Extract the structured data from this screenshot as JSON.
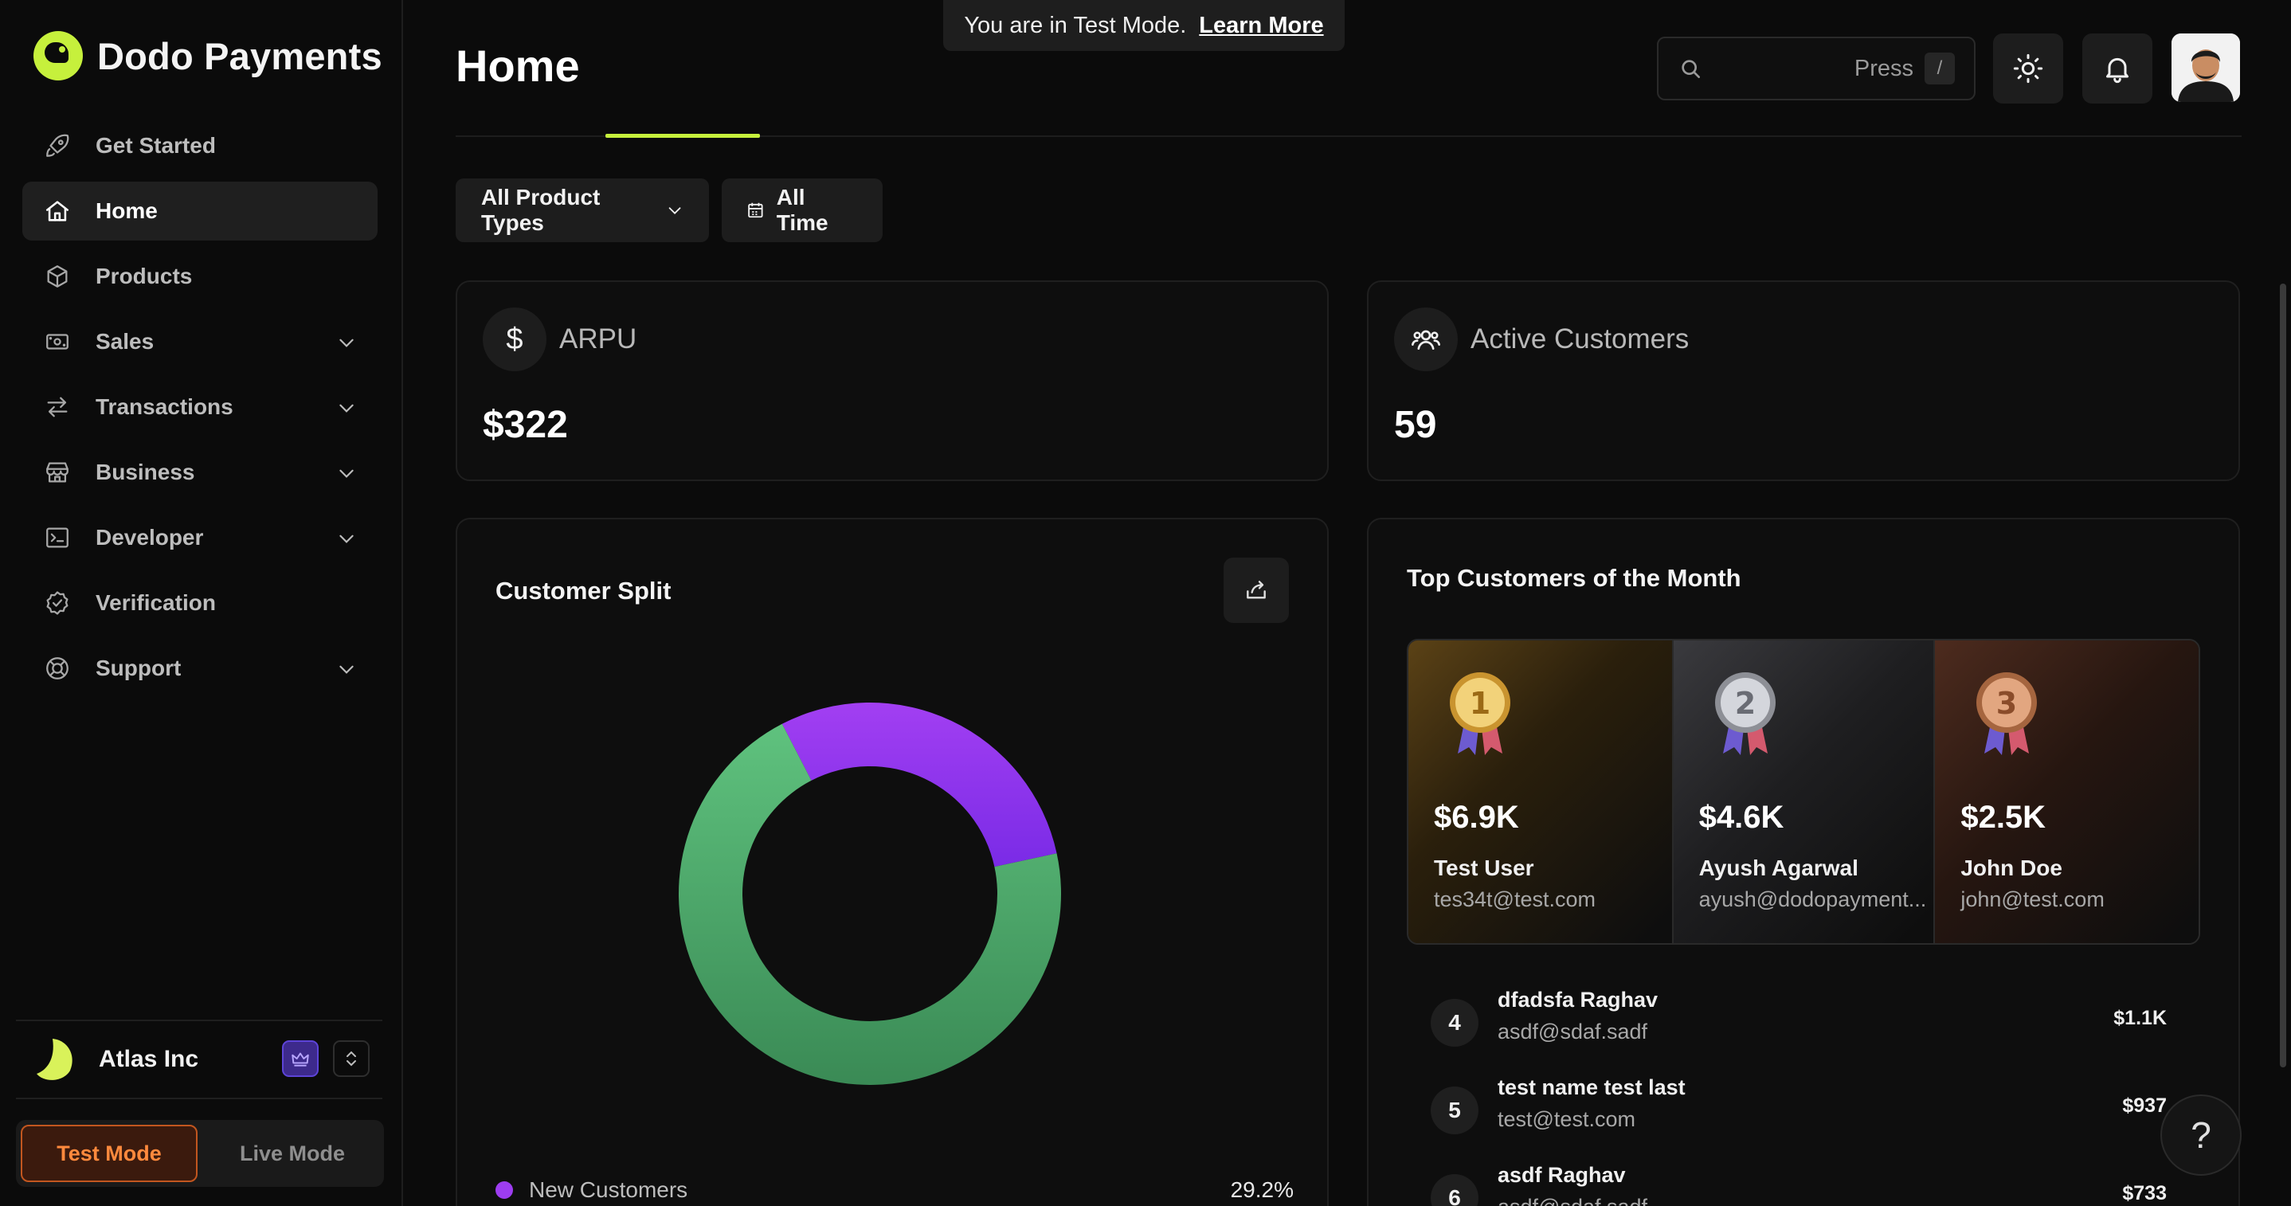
{
  "brand": {
    "name": "Dodo Payments"
  },
  "banner": {
    "text": "You are in Test Mode.",
    "link": "Learn More"
  },
  "header": {
    "title": "Home",
    "search_placeholder": "Press",
    "search_shortcut": "/"
  },
  "sidebar": {
    "items": [
      {
        "label": "Get Started",
        "icon": "rocket-icon"
      },
      {
        "label": "Home",
        "icon": "home-icon",
        "active": true
      },
      {
        "label": "Products",
        "icon": "box-icon"
      },
      {
        "label": "Sales",
        "icon": "cash-icon",
        "expandable": true
      },
      {
        "label": "Transactions",
        "icon": "arrows-icon",
        "expandable": true
      },
      {
        "label": "Business",
        "icon": "store-icon",
        "expandable": true
      },
      {
        "label": "Developer",
        "icon": "terminal-icon",
        "expandable": true
      },
      {
        "label": "Verification",
        "icon": "badge-check-icon"
      },
      {
        "label": "Support",
        "icon": "lifebuoy-icon",
        "expandable": true
      }
    ],
    "org": {
      "name": "Atlas Inc"
    },
    "mode": {
      "test": "Test Mode",
      "live": "Live Mode",
      "active": "test"
    }
  },
  "filters": {
    "product_types": "All Product Types",
    "time": "All Time"
  },
  "stats": [
    {
      "label": "ARPU",
      "value": "$322",
      "icon": "dollar-icon"
    },
    {
      "label": "Active Customers",
      "value": "59",
      "icon": "users-icon"
    }
  ],
  "customer_split": {
    "title": "Customer Split",
    "legend_label": "New Customers",
    "legend_value": "29.2%",
    "segments": [
      {
        "label": "New Customers",
        "percent": 29.2,
        "color": "#9d3df0"
      },
      {
        "label": "",
        "percent": 70.8,
        "color": "#4caf6e"
      }
    ]
  },
  "top_customers": {
    "title": "Top Customers of the Month",
    "podium": [
      {
        "rank": "1",
        "amount": "$6.9K",
        "name": "Test User",
        "email": "tes34t@test.com"
      },
      {
        "rank": "2",
        "amount": "$4.6K",
        "name": "Ayush Agarwal",
        "email": "ayush@dodopayment..."
      },
      {
        "rank": "3",
        "amount": "$2.5K",
        "name": "John Doe",
        "email": "john@test.com"
      }
    ],
    "list": [
      {
        "rank": "4",
        "name": "dfadsfa Raghav",
        "email": "asdf@sdaf.sadf",
        "amount": "$1.1K"
      },
      {
        "rank": "5",
        "name": "test name test last",
        "email": "test@test.com",
        "amount": "$937"
      },
      {
        "rank": "6",
        "name": "asdf Raghav",
        "email": "asdf@sdaf.sadf",
        "amount": "$733"
      }
    ]
  },
  "colors": {
    "accent": "#c6f03c",
    "test_mode": "#ff8a3d",
    "donut_purple": "#9d3df0",
    "donut_green": "#4caf6e"
  },
  "help": {
    "label": "?"
  }
}
